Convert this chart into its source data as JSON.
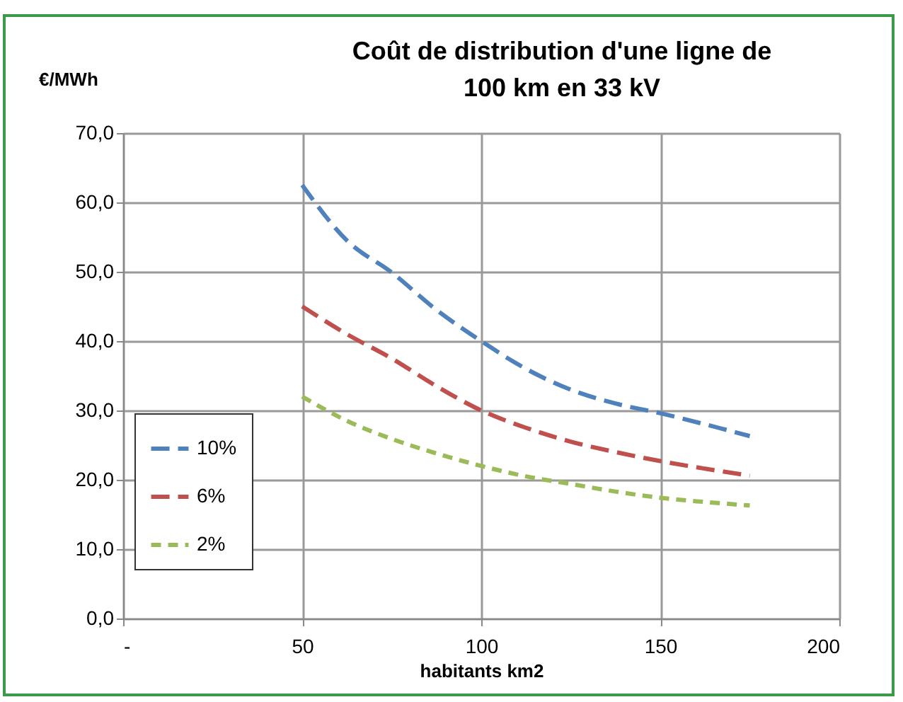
{
  "chart_data": {
    "type": "line",
    "title": [
      "Coût de distribution d'une ligne de",
      "100 km en 33 kV"
    ],
    "xlabel": "habitants km2",
    "ylabel": "€/MWh",
    "xlim": [
      0,
      200
    ],
    "xticks": [
      {
        "value": 0,
        "label": "-"
      },
      50,
      100,
      150,
      200
    ],
    "ylim": [
      0,
      70
    ],
    "yticks": [
      {
        "value": 0,
        "label": "0,0"
      },
      {
        "value": 10,
        "label": "10,0"
      },
      {
        "value": 20,
        "label": "20,0"
      },
      {
        "value": 30,
        "label": "30,0"
      },
      {
        "value": 40,
        "label": "40,0"
      },
      {
        "value": 50,
        "label": "50,0"
      },
      {
        "value": 60,
        "label": "60,0"
      },
      {
        "value": 70,
        "label": "70,0"
      }
    ],
    "x": [
      50,
      62.5,
      75,
      87.5,
      100,
      112.5,
      125,
      137.5,
      150,
      162.5,
      175
    ],
    "series": [
      {
        "name": "10%",
        "color": "#4f81bd",
        "line_style": "dashed",
        "values": [
          62.5,
          54.5,
          49.9,
          44.5,
          40,
          36,
          33,
          31,
          29.6,
          28,
          26.3
        ]
      },
      {
        "name": "6%",
        "color": "#c0504d",
        "line_style": "dashed",
        "values": [
          45,
          41,
          37.5,
          33.5,
          30,
          27.5,
          25.5,
          24,
          22.7,
          21.6,
          20.6
        ]
      },
      {
        "name": "2%",
        "color": "#9bbb59",
        "line_style": "dotted",
        "values": [
          32,
          28.5,
          25.9,
          23.8,
          22,
          20.5,
          19.4,
          18.3,
          17.4,
          16.8,
          16.3
        ]
      }
    ],
    "grid": true,
    "legend": "bottom left",
    "marker": "none"
  }
}
